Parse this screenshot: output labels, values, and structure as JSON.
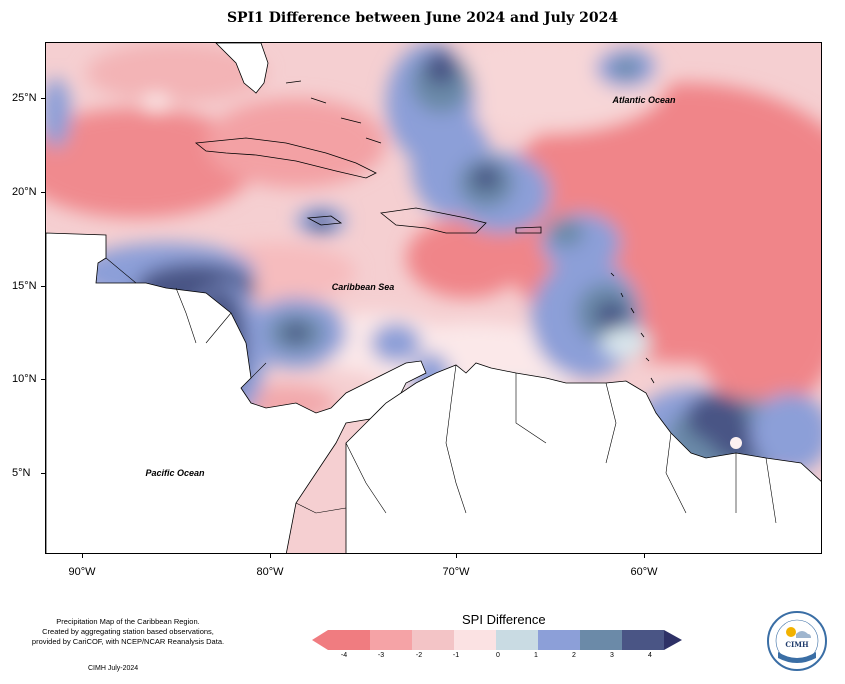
{
  "title": "SPI1 Difference between June 2024 and July 2024",
  "axes": {
    "lat_labels": [
      "25°N",
      "20°N",
      "15°N",
      "10°N",
      "5°N"
    ],
    "lon_labels": [
      "90°W",
      "80°W",
      "70°W",
      "60°W"
    ]
  },
  "map_labels": {
    "atlantic": "Atlantic Ocean",
    "caribbean": "Caribbean Sea",
    "pacific": "Pacific Ocean"
  },
  "footnote": {
    "line1": "Precipitation Map of the Caribbean Region.",
    "line2": "Created by aggregating station based observations,",
    "line3": "provided by CariCOF, with NCEP/NCAR Reanalysis Data.",
    "credit": "CIMH July-2024"
  },
  "legend": {
    "title": "SPI Difference",
    "ticks": [
      "-4",
      "-3",
      "-2",
      "-1",
      "0",
      "1",
      "2",
      "3",
      "4"
    ],
    "colors": [
      "#f07c80",
      "#f5a3a6",
      "#f3c4c6",
      "#fbe2e3",
      "#fdf1f1",
      "#c9dbe3",
      "#8c9fd8",
      "#6b8aa8",
      "#4a5585",
      "#2e3166"
    ]
  },
  "logo": {
    "text": "CIMH"
  }
}
